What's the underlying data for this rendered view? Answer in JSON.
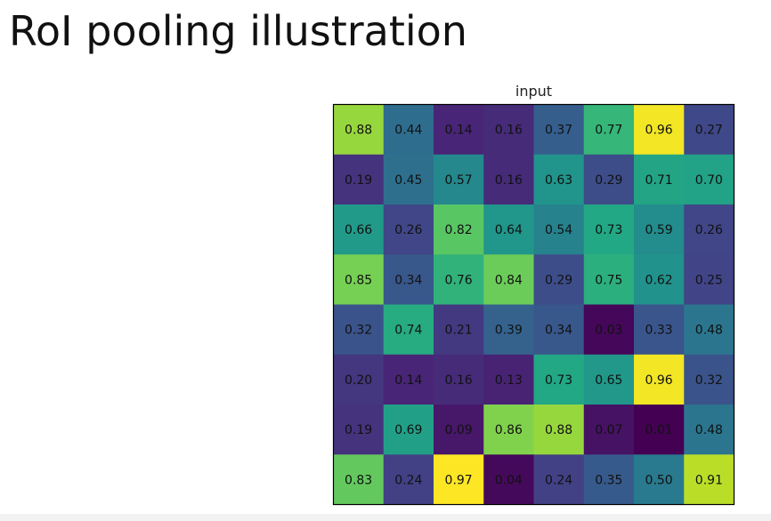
{
  "slide": {
    "title": "RoI pooling illustration"
  },
  "chart_data": {
    "type": "heatmap",
    "title": "input",
    "colormap": "viridis",
    "rows": 8,
    "cols": 8,
    "values": [
      [
        0.88,
        0.44,
        0.14,
        0.16,
        0.37,
        0.77,
        0.96,
        0.27
      ],
      [
        0.19,
        0.45,
        0.57,
        0.16,
        0.63,
        0.29,
        0.71,
        0.7
      ],
      [
        0.66,
        0.26,
        0.82,
        0.64,
        0.54,
        0.73,
        0.59,
        0.26
      ],
      [
        0.85,
        0.34,
        0.76,
        0.84,
        0.29,
        0.75,
        0.62,
        0.25
      ],
      [
        0.32,
        0.74,
        0.21,
        0.39,
        0.34,
        0.03,
        0.33,
        0.48
      ],
      [
        0.2,
        0.14,
        0.16,
        0.13,
        0.73,
        0.65,
        0.96,
        0.32
      ],
      [
        0.19,
        0.69,
        0.09,
        0.86,
        0.88,
        0.07,
        0.01,
        0.48
      ],
      [
        0.83,
        0.24,
        0.97,
        0.04,
        0.24,
        0.35,
        0.5,
        0.91
      ]
    ]
  }
}
